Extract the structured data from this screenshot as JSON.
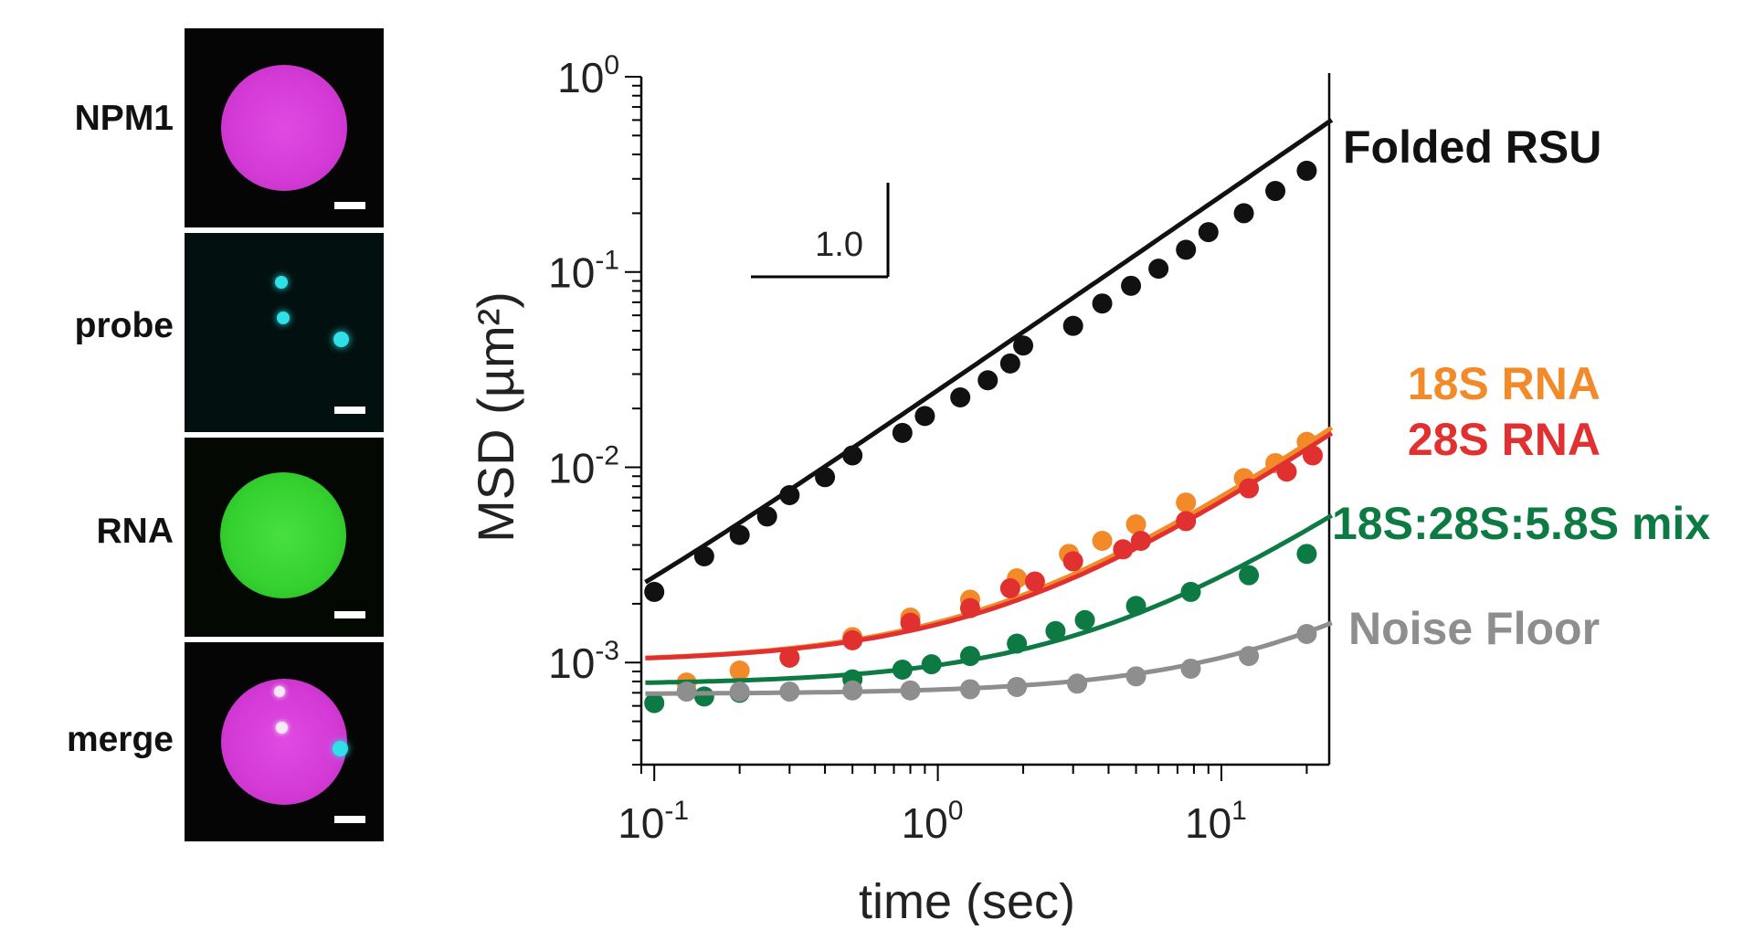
{
  "panels": [
    {
      "label": "NPM1",
      "scalebar": true
    },
    {
      "label": "probe",
      "scalebar": true
    },
    {
      "label": "RNA",
      "scalebar": true
    },
    {
      "label": "merge",
      "scalebar": true
    }
  ],
  "colors": {
    "magenta": "#d43ad6",
    "cyan": "#2fe0e6",
    "green": "#35d12f",
    "folded": "#111111",
    "s18": "#f28a2a",
    "s28": "#e0302f",
    "mix": "#0e7a43",
    "noise": "#8e8e8e"
  },
  "chart_data": {
    "type": "scatter",
    "xlabel": "time (sec)",
    "ylabel": "MSD (µm²)",
    "xscale": "log",
    "yscale": "log",
    "xlim": [
      0.09,
      24
    ],
    "ylim": [
      0.0003,
      1.0
    ],
    "x_ticks": [
      {
        "value": 0.1,
        "base": "10",
        "exp": "-1"
      },
      {
        "value": 1,
        "base": "10",
        "exp": "0"
      },
      {
        "value": 10,
        "base": "10",
        "exp": "1"
      }
    ],
    "y_ticks": [
      {
        "value": 1,
        "base": "10",
        "exp": "0"
      },
      {
        "value": 0.1,
        "base": "10",
        "exp": "-1"
      },
      {
        "value": 0.01,
        "base": "10",
        "exp": "-2"
      },
      {
        "value": 0.001,
        "base": "10",
        "exp": "-3"
      }
    ],
    "slope_marker": {
      "label": "1.0",
      "slope": 1.0
    },
    "series": [
      {
        "name": "Folded RSU",
        "color_key": "folded",
        "fit": {
          "a": 0.0245,
          "b": 1.0,
          "c": 0.0003
        },
        "x": [
          0.1,
          0.15,
          0.2,
          0.25,
          0.3,
          0.4,
          0.5,
          0.75,
          0.9,
          1.2,
          1.5,
          1.8,
          2.0,
          3.0,
          3.8,
          4.8,
          6.0,
          7.5,
          9.0,
          12,
          15.5,
          20
        ],
        "y": [
          0.0023,
          0.0035,
          0.0045,
          0.0056,
          0.0072,
          0.0089,
          0.0115,
          0.015,
          0.0183,
          0.0228,
          0.0279,
          0.034,
          0.042,
          0.053,
          0.069,
          0.085,
          0.104,
          0.13,
          0.16,
          0.2,
          0.26,
          0.33
        ]
      },
      {
        "name": "18S RNA",
        "color_key": "s18",
        "fit": {
          "a": 0.00061,
          "b": 1.0,
          "c": 0.001
        },
        "x": [
          0.13,
          0.2,
          0.3,
          0.5,
          0.8,
          1.3,
          1.9,
          2.9,
          3.8,
          5.0,
          7.5,
          12,
          15.5,
          20
        ],
        "y": [
          0.00079,
          0.00091,
          0.00106,
          0.00135,
          0.0017,
          0.0021,
          0.0027,
          0.0036,
          0.0042,
          0.0051,
          0.0066,
          0.0088,
          0.0105,
          0.0135
        ]
      },
      {
        "name": "28S RNA",
        "color_key": "s28",
        "fit": {
          "a": 0.00057,
          "b": 1.0,
          "c": 0.001
        },
        "x": [
          0.3,
          0.5,
          0.8,
          1.3,
          1.8,
          2.2,
          3.0,
          4.5,
          5.2,
          7.5,
          12.5,
          17,
          21
        ],
        "y": [
          0.00106,
          0.0013,
          0.0016,
          0.0019,
          0.0024,
          0.0026,
          0.0033,
          0.0038,
          0.0042,
          0.0053,
          0.0078,
          0.0095,
          0.0115
        ]
      },
      {
        "name": "18S:28S:5.8S mix",
        "color_key": "mix",
        "fit": {
          "a": 0.0002,
          "b": 1.0,
          "c": 0.00077
        },
        "x": [
          0.1,
          0.15,
          0.2,
          0.5,
          0.75,
          0.95,
          1.3,
          1.9,
          2.6,
          3.3,
          5.0,
          7.8,
          12.5,
          20
        ],
        "y": [
          0.00062,
          0.00067,
          0.0007,
          0.00082,
          0.00092,
          0.00098,
          0.00108,
          0.00125,
          0.00145,
          0.00165,
          0.00195,
          0.0023,
          0.0028,
          0.0036
        ]
      },
      {
        "name": "Noise Floor",
        "color_key": "noise",
        "fit": {
          "a": 3.7e-05,
          "b": 1.0,
          "c": 0.00069
        },
        "x": [
          0.13,
          0.2,
          0.3,
          0.5,
          0.8,
          1.3,
          1.9,
          3.1,
          5.0,
          7.8,
          12.5,
          20
        ],
        "y": [
          0.00071,
          0.00071,
          0.00071,
          0.00072,
          0.00072,
          0.00073,
          0.00075,
          0.00078,
          0.00085,
          0.00093,
          0.00108,
          0.0014
        ]
      }
    ]
  }
}
